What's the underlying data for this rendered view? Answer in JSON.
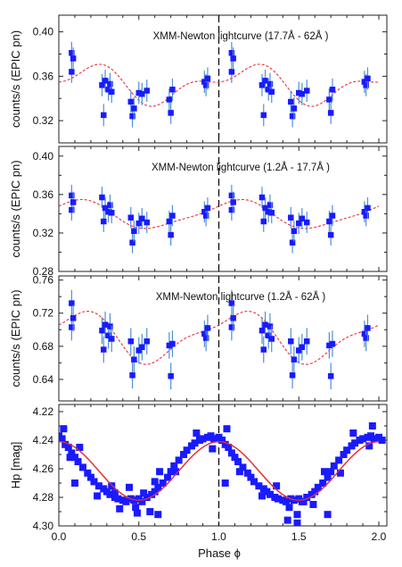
{
  "chart_data": [
    {
      "type": "scatter",
      "title": "XMM-Newton lightcurve (17.7Å - 62Å )",
      "ylabel": "counts/s (EPIC pn)",
      "ylim": [
        0.3,
        0.415
      ],
      "yticks": [
        "0.32",
        "0.36",
        "0.40"
      ],
      "ytick_values": [
        0.32,
        0.36,
        0.4
      ],
      "series": [
        {
          "x": [
            0.08,
            0.08,
            0.09,
            0.27,
            0.28,
            0.29,
            0.31,
            0.32,
            0.33,
            0.45,
            0.46,
            0.47,
            0.5,
            0.52,
            0.55,
            0.69,
            0.7,
            0.71,
            0.91,
            0.92,
            0.93,
            1.08,
            1.08,
            1.09,
            1.27,
            1.28,
            1.29,
            1.31,
            1.32,
            1.33,
            1.45,
            1.46,
            1.47,
            1.5,
            1.52,
            1.55,
            1.69,
            1.7,
            1.71,
            1.91,
            1.92,
            1.93
          ],
          "y": [
            0.381,
            0.364,
            0.376,
            0.352,
            0.325,
            0.356,
            0.348,
            0.353,
            0.346,
            0.337,
            0.324,
            0.331,
            0.345,
            0.344,
            0.347,
            0.339,
            0.327,
            0.348,
            0.355,
            0.352,
            0.358,
            0.381,
            0.364,
            0.376,
            0.352,
            0.325,
            0.356,
            0.348,
            0.353,
            0.346,
            0.337,
            0.324,
            0.331,
            0.345,
            0.344,
            0.347,
            0.339,
            0.327,
            0.348,
            0.355,
            0.352,
            0.358
          ],
          "err": 0.01
        }
      ],
      "model_params": {
        "mean": 0.353,
        "a1": 0.014,
        "phi1": 1.15,
        "a2": 0.008,
        "phi2": 1.3
      }
    },
    {
      "type": "scatter",
      "title": "XMM-Newton lightcurve (1.2Å - 17.7Å )",
      "ylabel": "counts/s (EPIC pn)",
      "ylim": [
        0.28,
        0.41
      ],
      "yticks": [
        "0.28",
        "0.32",
        "0.36",
        "0.40"
      ],
      "ytick_values": [
        0.28,
        0.32,
        0.36,
        0.4
      ],
      "series": [
        {
          "x": [
            0.08,
            0.08,
            0.09,
            0.27,
            0.28,
            0.29,
            0.31,
            0.32,
            0.33,
            0.45,
            0.46,
            0.47,
            0.5,
            0.52,
            0.55,
            0.69,
            0.7,
            0.71,
            0.91,
            0.92,
            0.93,
            1.08,
            1.08,
            1.09,
            1.27,
            1.28,
            1.29,
            1.31,
            1.32,
            1.33,
            1.45,
            1.46,
            1.47,
            1.5,
            1.52,
            1.55,
            1.69,
            1.7,
            1.71,
            1.91,
            1.92,
            1.93
          ],
          "y": [
            0.359,
            0.344,
            0.352,
            0.357,
            0.332,
            0.346,
            0.342,
            0.349,
            0.341,
            0.336,
            0.31,
            0.322,
            0.33,
            0.335,
            0.331,
            0.332,
            0.318,
            0.338,
            0.342,
            0.338,
            0.346,
            0.359,
            0.344,
            0.352,
            0.357,
            0.332,
            0.346,
            0.342,
            0.349,
            0.341,
            0.336,
            0.31,
            0.322,
            0.33,
            0.335,
            0.331,
            0.332,
            0.318,
            0.338,
            0.342,
            0.338,
            0.346
          ],
          "err": 0.011
        }
      ],
      "model_params": {
        "mean": 0.339,
        "a1": 0.014,
        "phi1": 1.1,
        "a2": 0.003,
        "phi2": 1.2
      }
    },
    {
      "type": "scatter",
      "title": "XMM-Newton lightcurve (1.2Å - 62Å )",
      "ylabel": "counts/s (EPIC pn)",
      "ylim": [
        0.614,
        0.765
      ],
      "yticks": [
        "0.64",
        "0.68",
        "0.72",
        "0.76"
      ],
      "ytick_values": [
        0.64,
        0.68,
        0.72,
        0.76
      ],
      "series": [
        {
          "x": [
            0.08,
            0.08,
            0.09,
            0.27,
            0.28,
            0.29,
            0.31,
            0.32,
            0.33,
            0.45,
            0.46,
            0.47,
            0.5,
            0.52,
            0.55,
            0.69,
            0.7,
            0.71,
            0.91,
            0.92,
            0.93,
            1.08,
            1.08,
            1.09,
            1.27,
            1.28,
            1.29,
            1.31,
            1.32,
            1.33,
            1.45,
            1.46,
            1.47,
            1.5,
            1.52,
            1.55,
            1.69,
            1.7,
            1.71,
            1.91,
            1.92,
            1.93
          ],
          "y": [
            0.732,
            0.703,
            0.714,
            0.699,
            0.676,
            0.706,
            0.693,
            0.704,
            0.689,
            0.686,
            0.645,
            0.664,
            0.675,
            0.679,
            0.686,
            0.681,
            0.644,
            0.683,
            0.695,
            0.69,
            0.702,
            0.732,
            0.703,
            0.714,
            0.699,
            0.676,
            0.706,
            0.693,
            0.704,
            0.689,
            0.686,
            0.645,
            0.664,
            0.675,
            0.679,
            0.686,
            0.681,
            0.644,
            0.683,
            0.695,
            0.69,
            0.702
          ],
          "err": 0.016
        }
      ],
      "model_params": {
        "mean": 0.692,
        "a1": 0.028,
        "phi1": 1.1,
        "a2": 0.009,
        "phi2": 1.25
      }
    },
    {
      "type": "scatter",
      "title": "",
      "ylabel": "Hp [mag]",
      "xlabel": "Phase ϕ",
      "ylim": [
        4.3,
        4.215
      ],
      "inverted": true,
      "yticks": [
        "4.22",
        "4.24",
        "4.26",
        "4.28",
        "4.30"
      ],
      "ytick_values": [
        4.22,
        4.24,
        4.26,
        4.28,
        4.3
      ],
      "xlim": [
        0.0,
        2.05
      ],
      "xticks": [
        "0.0",
        "0.5",
        "1.0",
        "1.5",
        "2.0"
      ],
      "xtick_values": [
        0.0,
        0.5,
        1.0,
        1.5,
        2.0
      ],
      "series": [
        {
          "x": [
            0.0,
            0.02,
            0.04,
            0.06,
            0.08,
            0.1,
            0.12,
            0.15,
            0.18,
            0.2,
            0.22,
            0.25,
            0.28,
            0.3,
            0.32,
            0.35,
            0.37,
            0.4,
            0.42,
            0.45,
            0.47,
            0.5,
            0.52,
            0.55,
            0.58,
            0.6,
            0.62,
            0.65,
            0.68,
            0.7,
            0.72,
            0.75,
            0.78,
            0.8,
            0.83,
            0.85,
            0.88,
            0.9,
            0.93,
            0.95,
            0.97,
            1.0,
            1.02,
            1.04,
            1.06,
            1.08,
            1.1,
            1.12,
            1.15,
            1.18,
            1.2,
            1.22,
            1.25,
            1.28,
            1.3,
            1.32,
            1.35,
            1.37,
            1.4,
            1.42,
            1.45,
            1.47,
            1.5,
            1.52,
            1.55,
            1.58,
            1.6,
            1.62,
            1.65,
            1.68,
            1.7,
            1.72,
            1.75,
            1.78,
            1.8,
            1.83,
            1.85,
            1.88,
            1.9,
            1.93,
            1.95,
            1.97,
            2.0,
            2.02,
            0.03,
            0.07,
            0.13,
            0.24,
            0.33,
            0.38,
            0.44,
            0.48,
            0.53,
            0.57,
            0.63,
            0.73,
            0.86,
            0.96,
            1.05,
            1.13,
            1.27,
            1.36,
            1.44,
            1.49,
            1.53,
            1.59,
            1.66,
            1.76,
            1.84,
            1.94,
            0.1,
            0.35,
            0.49,
            0.6,
            0.62,
            1.04,
            1.43,
            1.49,
            1.68,
            1.96
          ],
          "y": [
            4.237,
            4.239,
            4.243,
            4.245,
            4.249,
            4.252,
            4.255,
            4.259,
            4.263,
            4.266,
            4.269,
            4.272,
            4.274,
            4.276,
            4.278,
            4.28,
            4.281,
            4.282,
            4.283,
            4.281,
            4.282,
            4.281,
            4.283,
            4.28,
            4.278,
            4.276,
            4.273,
            4.27,
            4.266,
            4.262,
            4.258,
            4.254,
            4.25,
            4.247,
            4.244,
            4.242,
            4.24,
            4.239,
            4.238,
            4.237,
            4.239,
            4.238,
            4.24,
            4.243,
            4.245,
            4.249,
            4.252,
            4.255,
            4.259,
            4.263,
            4.266,
            4.269,
            4.272,
            4.274,
            4.276,
            4.278,
            4.28,
            4.281,
            4.282,
            4.283,
            4.281,
            4.282,
            4.281,
            4.283,
            4.28,
            4.278,
            4.276,
            4.273,
            4.27,
            4.266,
            4.262,
            4.258,
            4.254,
            4.25,
            4.247,
            4.244,
            4.242,
            4.24,
            4.239,
            4.238,
            4.237,
            4.239,
            4.238,
            4.24,
            4.232,
            4.252,
            4.245,
            4.279,
            4.272,
            4.288,
            4.273,
            4.287,
            4.277,
            4.29,
            4.262,
            4.262,
            4.235,
            4.246,
            4.232,
            4.262,
            4.279,
            4.272,
            4.287,
            4.292,
            4.283,
            4.285,
            4.262,
            4.263,
            4.235,
            4.244,
            4.27,
            4.277,
            4.291,
            4.269,
            4.292,
            4.27,
            4.296,
            4.298,
            4.292,
            4.23
          ],
          "err": 0
        }
      ],
      "model_params": {
        "mean": 4.2615,
        "a1": -0.0205,
        "phi1": 1.0,
        "a2": 0.0,
        "phi2": 0.0
      }
    }
  ],
  "colors": {
    "points": "#1a1aff",
    "error_bars": "#4f8fd6",
    "model": "#e8303a",
    "phase_line": "#000000"
  }
}
